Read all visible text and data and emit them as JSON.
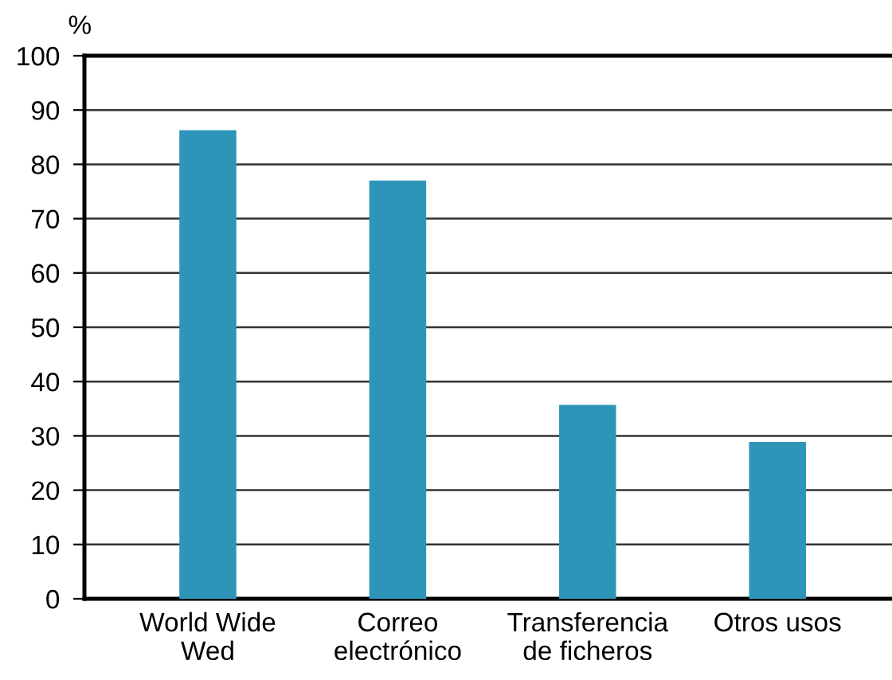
{
  "chart_data": {
    "type": "bar",
    "ylabel": "%",
    "categories": [
      "World Wide\nWed",
      "Correo\nelectrónico",
      "Transferencia\nde ficheros",
      "Otros usos"
    ],
    "values": [
      86.3,
      77.0,
      35.7,
      28.9
    ],
    "color": "#2e95b8",
    "ylim": [
      0,
      100
    ],
    "yticks": [
      0,
      10,
      20,
      30,
      40,
      50,
      60,
      70,
      80,
      90,
      100
    ],
    "grid": "y"
  }
}
